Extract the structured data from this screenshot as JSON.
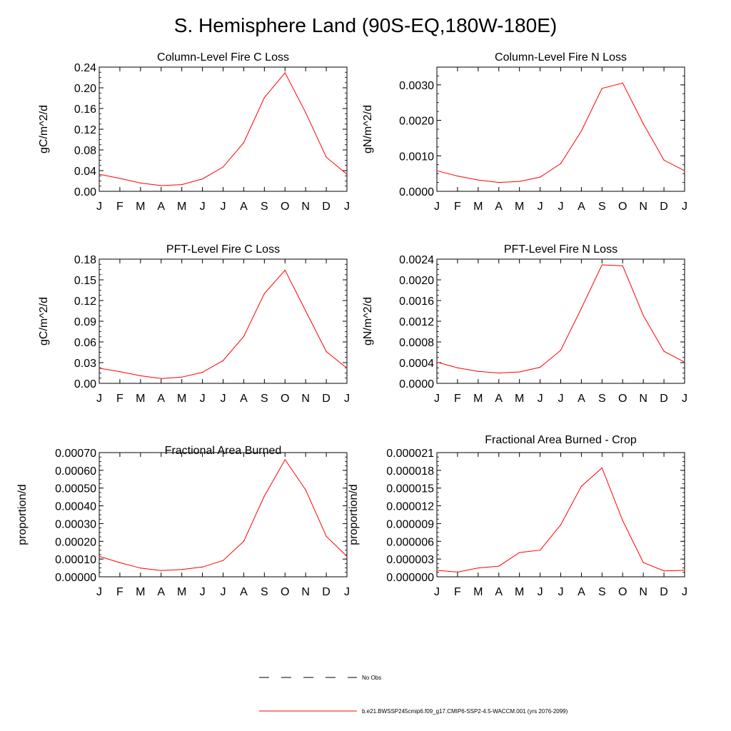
{
  "title": "S. Hemisphere Land (90S-EQ,180W-180E)",
  "colors": {
    "model_line": "#ff0000",
    "obs_line": "#000000",
    "axis": "#000000"
  },
  "legend": [
    {
      "label": "No Obs",
      "style": "dashed",
      "color": "#000000"
    },
    {
      "label": "b.e21.BWSSP245cmip6.f09_g17.CMIP6-SSP2-4.5-WACCM.001 (yrs 2076-2099)",
      "style": "solid",
      "color": "#ff0000"
    }
  ],
  "chart_data": [
    {
      "type": "line",
      "title": "Column-Level Fire C Loss",
      "ylabel": "gC/m^2/d",
      "categories": [
        "J",
        "F",
        "M",
        "A",
        "M",
        "J",
        "J",
        "A",
        "S",
        "O",
        "N",
        "D",
        "J"
      ],
      "ylim": [
        0,
        0.24
      ],
      "yticks": [
        "0.00",
        "0.04",
        "0.08",
        "0.12",
        "0.16",
        "0.20",
        "0.24"
      ],
      "ytick_values": [
        0,
        0.04,
        0.08,
        0.12,
        0.16,
        0.2,
        0.24
      ],
      "series": [
        {
          "name": "b.e21.BWSSP245cmip6.f09_g17.CMIP6-SSP2-4.5-WACCM.001 (yrs 2076-2099)",
          "values": [
            0.033,
            0.025,
            0.016,
            0.011,
            0.013,
            0.024,
            0.047,
            0.094,
            0.181,
            0.229,
            0.152,
            0.066,
            0.033
          ]
        }
      ]
    },
    {
      "type": "line",
      "title": "Column-Level Fire N Loss",
      "ylabel": "gN/m^2/d",
      "categories": [
        "J",
        "F",
        "M",
        "A",
        "M",
        "J",
        "J",
        "A",
        "S",
        "O",
        "N",
        "D",
        "J"
      ],
      "ylim": [
        0,
        0.0035
      ],
      "yticks": [
        "0.0000",
        "0.0010",
        "0.0020",
        "0.0030"
      ],
      "ytick_values": [
        0,
        0.001,
        0.002,
        0.003
      ],
      "series": [
        {
          "name": "b.e21.BWSSP245cmip6.f09_g17.CMIP6-SSP2-4.5-WACCM.001 (yrs 2076-2099)",
          "values": [
            0.00058,
            0.00043,
            0.00032,
            0.00025,
            0.00028,
            0.0004,
            0.00078,
            0.0017,
            0.0029,
            0.00305,
            0.0019,
            0.00088,
            0.00058
          ]
        }
      ]
    },
    {
      "type": "line",
      "title": "PFT-Level Fire C Loss",
      "ylabel": "gC/m^2/d",
      "categories": [
        "J",
        "F",
        "M",
        "A",
        "M",
        "J",
        "J",
        "A",
        "S",
        "O",
        "N",
        "D",
        "J"
      ],
      "ylim": [
        0,
        0.18
      ],
      "yticks": [
        "0.00",
        "0.03",
        "0.06",
        "0.09",
        "0.12",
        "0.15",
        "0.18"
      ],
      "ytick_values": [
        0,
        0.03,
        0.06,
        0.09,
        0.12,
        0.15,
        0.18
      ],
      "series": [
        {
          "name": "b.e21.BWSSP245cmip6.f09_g17.CMIP6-SSP2-4.5-WACCM.001 (yrs 2076-2099)",
          "values": [
            0.022,
            0.017,
            0.011,
            0.007,
            0.009,
            0.016,
            0.033,
            0.068,
            0.13,
            0.164,
            0.105,
            0.046,
            0.022
          ]
        }
      ]
    },
    {
      "type": "line",
      "title": "PFT-Level Fire N Loss",
      "ylabel": "gN/m^2/d",
      "categories": [
        "J",
        "F",
        "M",
        "A",
        "M",
        "J",
        "J",
        "A",
        "S",
        "O",
        "N",
        "D",
        "J"
      ],
      "ylim": [
        0,
        0.0024
      ],
      "yticks": [
        "0.0000",
        "0.0004",
        "0.0008",
        "0.0012",
        "0.0016",
        "0.0020",
        "0.0024"
      ],
      "ytick_values": [
        0,
        0.0004,
        0.0008,
        0.0012,
        0.0016,
        0.002,
        0.0024
      ],
      "series": [
        {
          "name": "b.e21.BWSSP245cmip6.f09_g17.CMIP6-SSP2-4.5-WACCM.001 (yrs 2076-2099)",
          "values": [
            0.00041,
            0.0003,
            0.00023,
            0.0002,
            0.00022,
            0.00031,
            0.00064,
            0.00145,
            0.00229,
            0.00227,
            0.00131,
            0.00062,
            0.00041
          ]
        }
      ]
    },
    {
      "type": "line",
      "title": "Fractional Area Burned",
      "ylabel": "proportion/d",
      "categories": [
        "J",
        "F",
        "M",
        "A",
        "M",
        "J",
        "J",
        "A",
        "S",
        "O",
        "N",
        "D",
        "J"
      ],
      "ylim": [
        0,
        0.0007
      ],
      "yticks": [
        "0.00000",
        "0.00010",
        "0.00020",
        "0.00030",
        "0.00040",
        "0.00050",
        "0.00060",
        "0.00070"
      ],
      "ytick_values": [
        0,
        0.0001,
        0.0002,
        0.0003,
        0.0004,
        0.0005,
        0.0006,
        0.0007
      ],
      "series": [
        {
          "name": "b.e21.BWSSP245cmip6.f09_g17.CMIP6-SSP2-4.5-WACCM.001 (yrs 2076-2099)",
          "values": [
            0.000115,
            8e-05,
            4.9e-05,
            3.5e-05,
            4.1e-05,
            5.5e-05,
            9.2e-05,
            0.0002,
            0.000455,
            0.00066,
            0.00049,
            0.000228,
            0.000115
          ]
        }
      ]
    },
    {
      "type": "line",
      "title": "Fractional Area Burned - Crop",
      "ylabel": "proportion/d",
      "categories": [
        "J",
        "F",
        "M",
        "A",
        "M",
        "J",
        "J",
        "A",
        "S",
        "O",
        "N",
        "D",
        "J"
      ],
      "ylim": [
        0,
        2.1e-05
      ],
      "yticks": [
        "0.000000",
        "0.000003",
        "0.000006",
        "0.000009",
        "0.000012",
        "0.000015",
        "0.000018",
        "0.000021"
      ],
      "ytick_values": [
        0,
        3e-06,
        6e-06,
        9e-06,
        1.2e-05,
        1.5e-05,
        1.8e-05,
        2.1e-05
      ],
      "series": [
        {
          "name": "b.e21.BWSSP245cmip6.f09_g17.CMIP6-SSP2-4.5-WACCM.001 (yrs 2076-2099)",
          "values": [
            1.1e-06,
            8e-07,
            1.5e-06,
            1.8e-06,
            4.1e-06,
            4.5e-06,
            8.8e-06,
            1.53e-05,
            1.84e-05,
            9.5e-06,
            2.4e-06,
            1e-06,
            1.1e-06
          ]
        }
      ]
    }
  ]
}
